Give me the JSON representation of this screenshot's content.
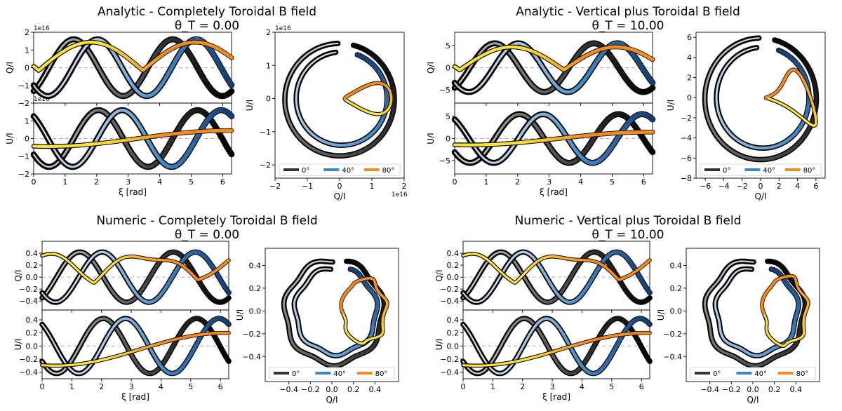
{
  "panels": [
    {
      "title": "Analytic   -   Completely Toroidal B field",
      "subtitle": "θ_T = 0.00",
      "kind": "analytic",
      "theta": 0,
      "left_xlabel": "ξ [rad]",
      "left_top_ylabel": "Q/I",
      "left_bottom_ylabel": "U/I",
      "left_xlim": [
        0,
        6.28
      ],
      "left_xticks": [
        "0",
        "1",
        "2",
        "3",
        "4",
        "5",
        "6"
      ],
      "left_top_ylim": [
        -2,
        2
      ],
      "left_top_yticks": [
        "−2",
        "−1",
        "0",
        "1",
        "2"
      ],
      "left_bottom_ylim": [
        -2,
        2
      ],
      "left_bottom_yticks": [
        "−2",
        "−1",
        "0",
        "1"
      ],
      "left_top_multiplier": "1e16",
      "left_bottom_multiplier": "1e16",
      "right_xlabel": "Q/I",
      "right_ylabel": "U/I",
      "right_xlim": [
        -2,
        2
      ],
      "right_ylim": [
        -2.4,
        2
      ],
      "right_xticks": [
        "−2",
        "−1",
        "0",
        "1",
        "2"
      ],
      "right_yticks": [
        "−2",
        "−1",
        "0",
        "1",
        "2"
      ],
      "right_x_multiplier": "1e16",
      "right_y_multiplier": "1e16",
      "legend": [
        "0°",
        "40°",
        "80°"
      ]
    },
    {
      "title": "Analytic   -   Vertical plus Toroidal B field",
      "subtitle": "θ_T = 10.00",
      "kind": "analytic",
      "theta": 10,
      "left_xlabel": "ξ [rad]",
      "left_top_ylabel": "Q/I",
      "left_bottom_ylabel": "U/I",
      "left_xlim": [
        0,
        6.28
      ],
      "left_xticks": [
        "0",
        "1",
        "2",
        "3",
        "4",
        "5",
        "6"
      ],
      "left_top_ylim": [
        -8,
        8
      ],
      "left_top_yticks": [
        "−5",
        "0",
        "5"
      ],
      "left_bottom_ylim": [
        -8,
        8
      ],
      "left_bottom_yticks": [
        "−5",
        "0",
        "5"
      ],
      "left_top_multiplier": "",
      "left_bottom_multiplier": "",
      "right_xlabel": "Q/I",
      "right_ylabel": "U/I",
      "right_xlim": [
        -7,
        7
      ],
      "right_ylim": [
        -8,
        6.5
      ],
      "right_xticks": [
        "−6",
        "−4",
        "−2",
        "0",
        "2",
        "4",
        "6"
      ],
      "right_yticks": [
        "−8",
        "−6",
        "−4",
        "−2",
        "0",
        "2",
        "4",
        "6"
      ],
      "right_x_multiplier": "",
      "right_y_multiplier": "",
      "legend": [
        "0°",
        "40°",
        "80°"
      ]
    },
    {
      "title": "Numeric   -   Completely Toroidal B field",
      "subtitle": "θ_T = 0.00",
      "kind": "numeric",
      "theta": 0,
      "left_xlabel": "ξ [rad]",
      "left_top_ylabel": "Q/I",
      "left_bottom_ylabel": "U/I",
      "left_xlim": [
        0,
        6.28
      ],
      "left_xticks": [
        "0",
        "1",
        "2",
        "3",
        "4",
        "5",
        "6"
      ],
      "left_top_ylim": [
        -0.55,
        0.6
      ],
      "left_top_yticks": [
        "−0.4",
        "−0.2",
        "0.0",
        "0.2",
        "0.4"
      ],
      "left_bottom_ylim": [
        -0.5,
        0.55
      ],
      "left_bottom_yticks": [
        "−0.4",
        "−0.2",
        "0.0",
        "0.2",
        "0.4"
      ],
      "left_top_multiplier": "",
      "left_bottom_multiplier": "",
      "right_xlabel": "Q/I",
      "right_ylabel": "U/I",
      "right_xlim": [
        -0.62,
        0.62
      ],
      "right_ylim": [
        -0.62,
        0.55
      ],
      "right_xticks": [
        "−0.4",
        "−0.2",
        "0.0",
        "0.2",
        "0.4"
      ],
      "right_yticks": [
        "−0.4",
        "−0.2",
        "0.0",
        "0.2",
        "0.4"
      ],
      "right_x_multiplier": "",
      "right_y_multiplier": "",
      "legend": [
        "0°",
        "40°",
        "80°"
      ]
    },
    {
      "title": "Numeric   -   Vertical plus Toroidal B field",
      "subtitle": "θ_T = 10.00",
      "kind": "numeric",
      "theta": 10,
      "left_xlabel": "ξ [rad]",
      "left_top_ylabel": "Q/I",
      "left_bottom_ylabel": "U/I",
      "left_xlim": [
        0,
        6.28
      ],
      "left_xticks": [
        "0",
        "1",
        "2",
        "3",
        "4",
        "5",
        "6"
      ],
      "left_top_ylim": [
        -0.55,
        0.6
      ],
      "left_top_yticks": [
        "−0.4",
        "−0.2",
        "0.0",
        "0.2",
        "0.4"
      ],
      "left_bottom_ylim": [
        -0.5,
        0.55
      ],
      "left_bottom_yticks": [
        "−0.4",
        "−0.2",
        "0.0",
        "0.2",
        "0.4"
      ],
      "left_top_multiplier": "",
      "left_bottom_multiplier": "",
      "right_xlabel": "Q/I",
      "right_ylabel": "U/I",
      "right_xlim": [
        -0.62,
        0.62
      ],
      "right_ylim": [
        -0.62,
        0.55
      ],
      "right_xticks": [
        "−0.4",
        "−0.2",
        "0.0",
        "0.2",
        "0.4"
      ],
      "right_yticks": [
        "−0.4",
        "−0.2",
        "0.0",
        "0.2",
        "0.4"
      ],
      "right_x_multiplier": "",
      "right_y_multiplier": "",
      "legend": [
        "0°",
        "40°",
        "80°"
      ]
    }
  ],
  "chart_data": [
    {
      "type": "line",
      "title": "Analytic - Completely Toroidal B field",
      "subtitle": "θ_T = 0.00",
      "xlabel": "ξ [rad]",
      "ylabel": "Q/I, U/I",
      "xlim": [
        0,
        6.28
      ],
      "ylim": [
        -2e+16,
        2e+16
      ],
      "legend": [
        "0°",
        "40°",
        "80°"
      ],
      "legend_placement": "bottom",
      "series_amplitude": {
        "0°": 1.6e+16,
        "40°": 1.6e+16,
        "80°": 1.6e+16
      },
      "polarization_loop_QU": {
        "outer_radius": 1.6e+16,
        "inner_loop_xmax": 1.6e+16
      }
    },
    {
      "type": "line",
      "title": "Analytic - Vertical plus Toroidal B field",
      "subtitle": "θ_T = 10.00",
      "xlabel": "ξ [rad]",
      "ylabel": "Q/I, U/I",
      "xlim": [
        0,
        6.28
      ],
      "ylim": [
        -8,
        8
      ],
      "legend": [
        "0°",
        "40°",
        "80°"
      ],
      "legend_placement": "bottom",
      "series_amplitude": {
        "0°": 5.5,
        "40°": 5.5,
        "80°": 5.0
      },
      "polarization_loop_QU": {
        "outer_radius": 5.8,
        "inner_loop_xmax": 5.5
      }
    },
    {
      "type": "line",
      "title": "Numeric - Completely Toroidal B field",
      "subtitle": "θ_T = 0.00",
      "xlabel": "ξ [rad]",
      "ylabel": "Q/I, U/I",
      "xlim": [
        0,
        6.28
      ],
      "ylim": [
        -0.5,
        0.55
      ],
      "legend": [
        "0°",
        "40°",
        "80°"
      ],
      "legend_placement": "bottom",
      "series_amplitude": {
        "0°": 0.42,
        "40°": 0.45,
        "80°": 0.5
      },
      "polarization_loop_QU": {
        "outer_radius": 0.44,
        "inner_loop_xmax": 0.5
      }
    },
    {
      "type": "line",
      "title": "Numeric - Vertical plus Toroidal B field",
      "subtitle": "θ_T = 10.00",
      "xlabel": "ξ [rad]",
      "ylabel": "Q/I, U/I",
      "xlim": [
        0,
        6.28
      ],
      "ylim": [
        -0.5,
        0.55
      ],
      "legend": [
        "0°",
        "40°",
        "80°"
      ],
      "legend_placement": "bottom",
      "series_amplitude": {
        "0°": 0.42,
        "40°": 0.45,
        "80°": 0.48
      },
      "polarization_loop_QU": {
        "outer_radius": 0.44,
        "inner_loop_xmax": 0.5
      }
    }
  ],
  "colors": {
    "grey_dark": "#333333",
    "grey_mid": "#777777",
    "grey_light": "#d9dfe8",
    "blue_light": "#a9c9e6",
    "blue_mid": "#3e86c4",
    "blue_dark": "#173b6e",
    "yellow": "#ffe23a",
    "orange": "#f28a22"
  }
}
